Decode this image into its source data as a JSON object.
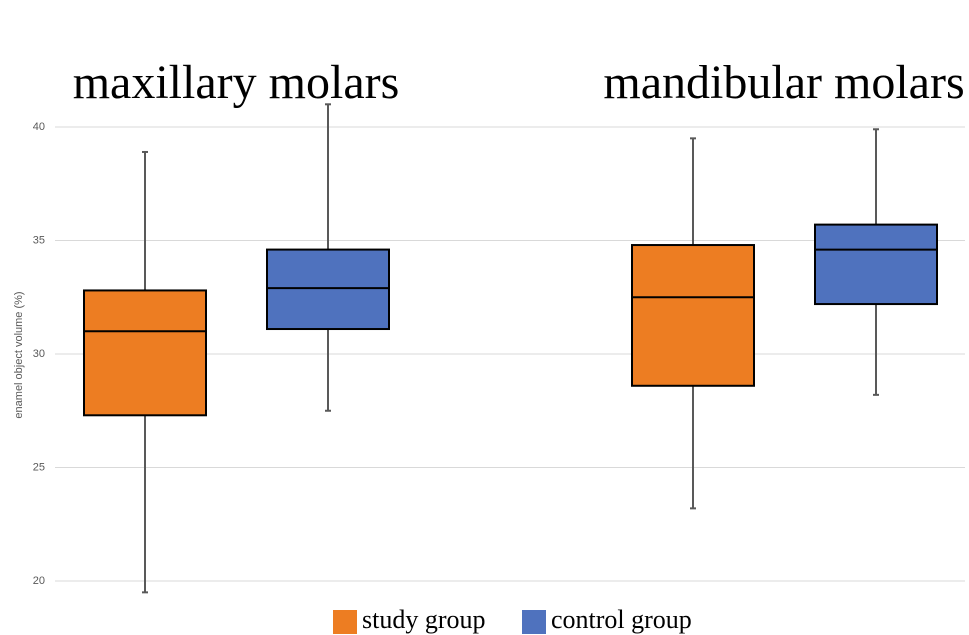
{
  "chart_data": {
    "type": "box",
    "categories": [
      "maxillary molars",
      "mandibular molars"
    ],
    "ylabel": "enamel object volume (%)",
    "ylim": [
      19,
      45
    ],
    "yticks": [
      20,
      25,
      30,
      35,
      40
    ],
    "grid": true,
    "legend": "bottom",
    "series": [
      {
        "name": "study group",
        "color": "#ed7d22",
        "low": [
          19.5,
          23.2
        ],
        "q1": [
          27.3,
          28.6
        ],
        "median": [
          31.0,
          32.5
        ],
        "q3": [
          32.8,
          34.8
        ],
        "high": [
          38.9,
          39.5
        ]
      },
      {
        "name": "control group",
        "color": "#4f72be",
        "low": [
          27.5,
          28.2
        ],
        "q1": [
          31.1,
          32.2
        ],
        "median": [
          32.9,
          34.6
        ],
        "q3": [
          34.6,
          35.7
        ],
        "high": [
          41.0,
          39.9
        ]
      }
    ]
  }
}
